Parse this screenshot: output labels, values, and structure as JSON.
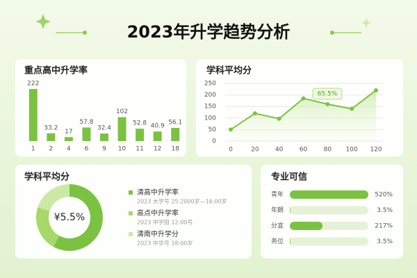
{
  "title": "2023年升学趋势分析",
  "chart_data": [
    {
      "type": "bar",
      "title": "重点高中升学率",
      "categories": [
        "1",
        "2",
        "4",
        "6",
        "9",
        "10",
        "11",
        "12",
        "18"
      ],
      "values": [
        222,
        33.2,
        17,
        57.8,
        32.4,
        102,
        52.8,
        40.9,
        56.1
      ],
      "color": "#7cc242"
    },
    {
      "type": "line",
      "title": "学科平均分",
      "x": [
        0,
        20,
        40,
        60,
        80,
        100,
        120
      ],
      "values": [
        50,
        120,
        97,
        185,
        160,
        140,
        220
      ],
      "xlim": [
        0,
        120
      ],
      "xticks": [
        0,
        20,
        40,
        60,
        80,
        100,
        120
      ],
      "ylim": [
        0,
        250
      ],
      "yticks": [
        0,
        50,
        100,
        150,
        200,
        250
      ],
      "grid": true,
      "annotation": "65.5%",
      "color": "#7cc242"
    },
    {
      "type": "pie",
      "donut": true,
      "title": "学科平均分",
      "center_label": "¥5.5%",
      "categories": [
        "清高中升学率",
        "高点中升学率",
        "清南中升学分"
      ],
      "subtitles": [
        "2023 大学号   25:2000岁—16:00岁",
        "2023 中学田   12:00号",
        "2023 中华号   18:00岁"
      ],
      "values": [
        58,
        22,
        20
      ],
      "colors": [
        "#7cc242",
        "#a6d86a",
        "#cbe9a3"
      ]
    },
    {
      "type": "hbar",
      "title": "专业可信",
      "categories": [
        "青年",
        "年朗",
        "分宜",
        "务位"
      ],
      "values": [
        520,
        3.5,
        217,
        3.5
      ],
      "value_labels": [
        "520%",
        "3.5%",
        "217%",
        "3.5%"
      ],
      "color": "#7cc242"
    }
  ]
}
